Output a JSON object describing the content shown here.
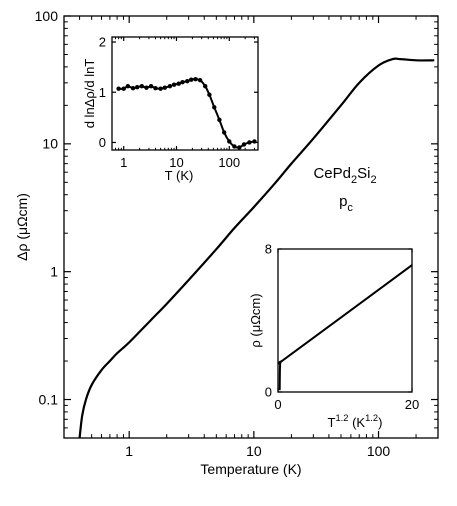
{
  "chart_data": [
    {
      "type": "line",
      "role": "main",
      "xlabel": "Temperature  (K)",
      "ylabel": "Δρ  (μΩcm)",
      "xscale": "log",
      "yscale": "log",
      "xlim": [
        0.3,
        300
      ],
      "ylim": [
        0.05,
        100
      ],
      "xticks": [
        {
          "v": 1,
          "label": "1"
        },
        {
          "v": 10,
          "label": "10"
        },
        {
          "v": 100,
          "label": "100"
        }
      ],
      "yticks": [
        {
          "v": 0.1,
          "label": "0.1"
        },
        {
          "v": 1,
          "label": "1"
        },
        {
          "v": 10,
          "label": "10"
        },
        {
          "v": 100,
          "label": "100"
        }
      ],
      "annotations": {
        "compound": [
          "CePd",
          "2",
          "Si",
          "2"
        ],
        "pressure": [
          "p",
          "c"
        ]
      },
      "series": [
        {
          "x": [
            0.4,
            0.42,
            0.45,
            0.5,
            0.6,
            0.7,
            0.8,
            1,
            1.5,
            2,
            3,
            5,
            7,
            10,
            15,
            20,
            30,
            50,
            70,
            100,
            130,
            150,
            200,
            280
          ],
          "y": [
            0.05,
            0.075,
            0.1,
            0.13,
            0.17,
            0.2,
            0.23,
            0.28,
            0.42,
            0.56,
            0.86,
            1.5,
            2.2,
            3.2,
            5.0,
            7.0,
            11.0,
            20.0,
            30.0,
            41.0,
            46.0,
            46.0,
            45.0,
            45.0
          ]
        }
      ]
    },
    {
      "type": "line",
      "role": "inset-top",
      "xlabel": "T  (K)",
      "ylabel": "d lnΔρ/d lnT",
      "xscale": "log",
      "xlim": [
        0.6,
        350
      ],
      "ylim": [
        -0.15,
        2.1
      ],
      "xticks": [
        {
          "v": 1,
          "label": "1"
        },
        {
          "v": 10,
          "label": "10"
        },
        {
          "v": 100,
          "label": "100"
        }
      ],
      "yticks": [
        {
          "v": 0,
          "label": "0"
        },
        {
          "v": 1,
          "label": "1"
        },
        {
          "v": 2,
          "label": "2"
        }
      ],
      "series": [
        {
          "markers": true,
          "x": [
            0.8,
            1.0,
            1.2,
            1.5,
            1.8,
            2.2,
            2.7,
            3.3,
            4,
            5,
            6,
            7.5,
            9,
            11,
            13,
            16,
            19,
            23,
            28,
            35,
            42,
            52,
            65,
            80,
            100,
            125,
            155,
            190,
            240,
            300
          ],
          "y": [
            1.07,
            1.07,
            1.12,
            1.08,
            1.1,
            1.12,
            1.09,
            1.12,
            1.08,
            1.07,
            1.09,
            1.12,
            1.15,
            1.17,
            1.2,
            1.22,
            1.25,
            1.26,
            1.24,
            1.12,
            0.95,
            0.7,
            0.45,
            0.2,
            0.02,
            -0.08,
            -0.1,
            -0.04,
            0.0,
            0.02
          ]
        }
      ]
    },
    {
      "type": "line",
      "role": "inset-bottom",
      "xlabel": [
        "T",
        "1.2",
        "  (K",
        "1.2",
        ")"
      ],
      "ylabel": "ρ  (μΩcm)",
      "xlim": [
        0,
        20
      ],
      "ylim": [
        0,
        8
      ],
      "xticks": [
        {
          "v": 0,
          "label": "0"
        },
        {
          "v": 20,
          "label": "20"
        }
      ],
      "yticks": [
        {
          "v": 0,
          "label": "0"
        },
        {
          "v": 8,
          "label": "8"
        }
      ],
      "series": [
        {
          "x": [
            0.25,
            0.27,
            0.3,
            0.4,
            1,
            20
          ],
          "y": [
            0.1,
            0.8,
            1.4,
            1.7,
            1.85,
            7.1
          ]
        }
      ]
    }
  ]
}
